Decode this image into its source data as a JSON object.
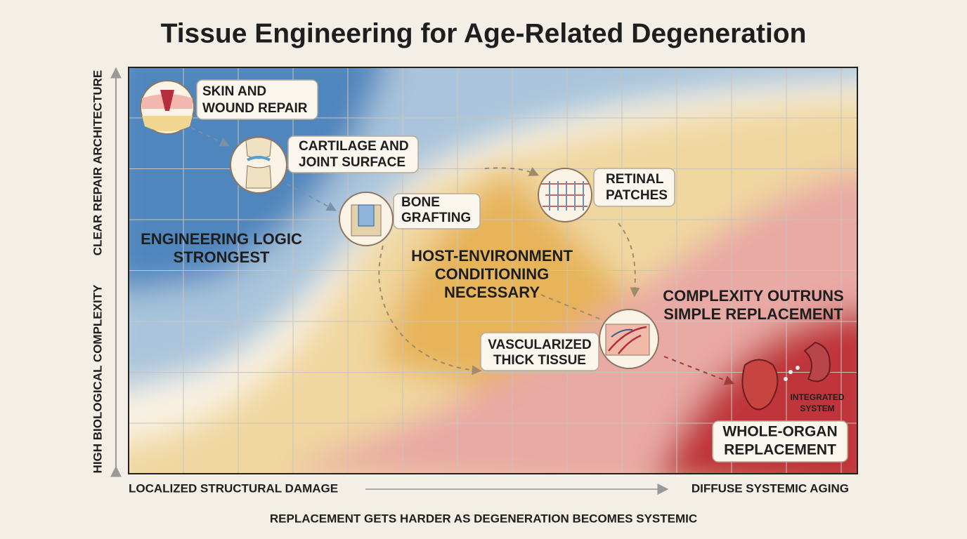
{
  "title": "Tissue Engineering for Age-Related Degeneration",
  "y_axis": {
    "bottom_label": "HIGH BIOLOGICAL COMPLEXITY",
    "top_label": "CLEAR REPAIR ARCHITECTURE"
  },
  "x_axis": {
    "left_label": "LOCALIZED STRUCTURAL DAMAGE",
    "right_label": "DIFFUSE SYSTEMIC AGING"
  },
  "caption": "REPLACEMENT GETS HARDER AS DEGENERATION BECOMES SYSTEMIC",
  "zones": [
    {
      "lines": [
        "ENGINEERING LOGIC",
        "STRONGEST"
      ]
    },
    {
      "lines": [
        "HOST-ENVIRONMENT",
        "CONDITIONING",
        "NECESSARY"
      ]
    },
    {
      "lines": [
        "COMPLEXITY OUTRUNS",
        "SIMPLE REPLACEMENT"
      ]
    }
  ],
  "nodes": [
    {
      "lines": [
        "SKIN AND",
        "WOUND REPAIR"
      ]
    },
    {
      "lines": [
        "CARTILAGE AND",
        "JOINT SURFACE"
      ]
    },
    {
      "lines": [
        "BONE",
        "GRAFTING"
      ]
    },
    {
      "lines": [
        "RETINAL",
        "PATCHES"
      ]
    },
    {
      "lines": [
        "VASCULARIZED",
        "THICK TISSUE"
      ]
    },
    {
      "lines": [
        "WHOLE-ORGAN",
        "REPLACEMENT"
      ],
      "icon_label": [
        "INTEGRATED",
        "SYSTEM"
      ]
    }
  ]
}
